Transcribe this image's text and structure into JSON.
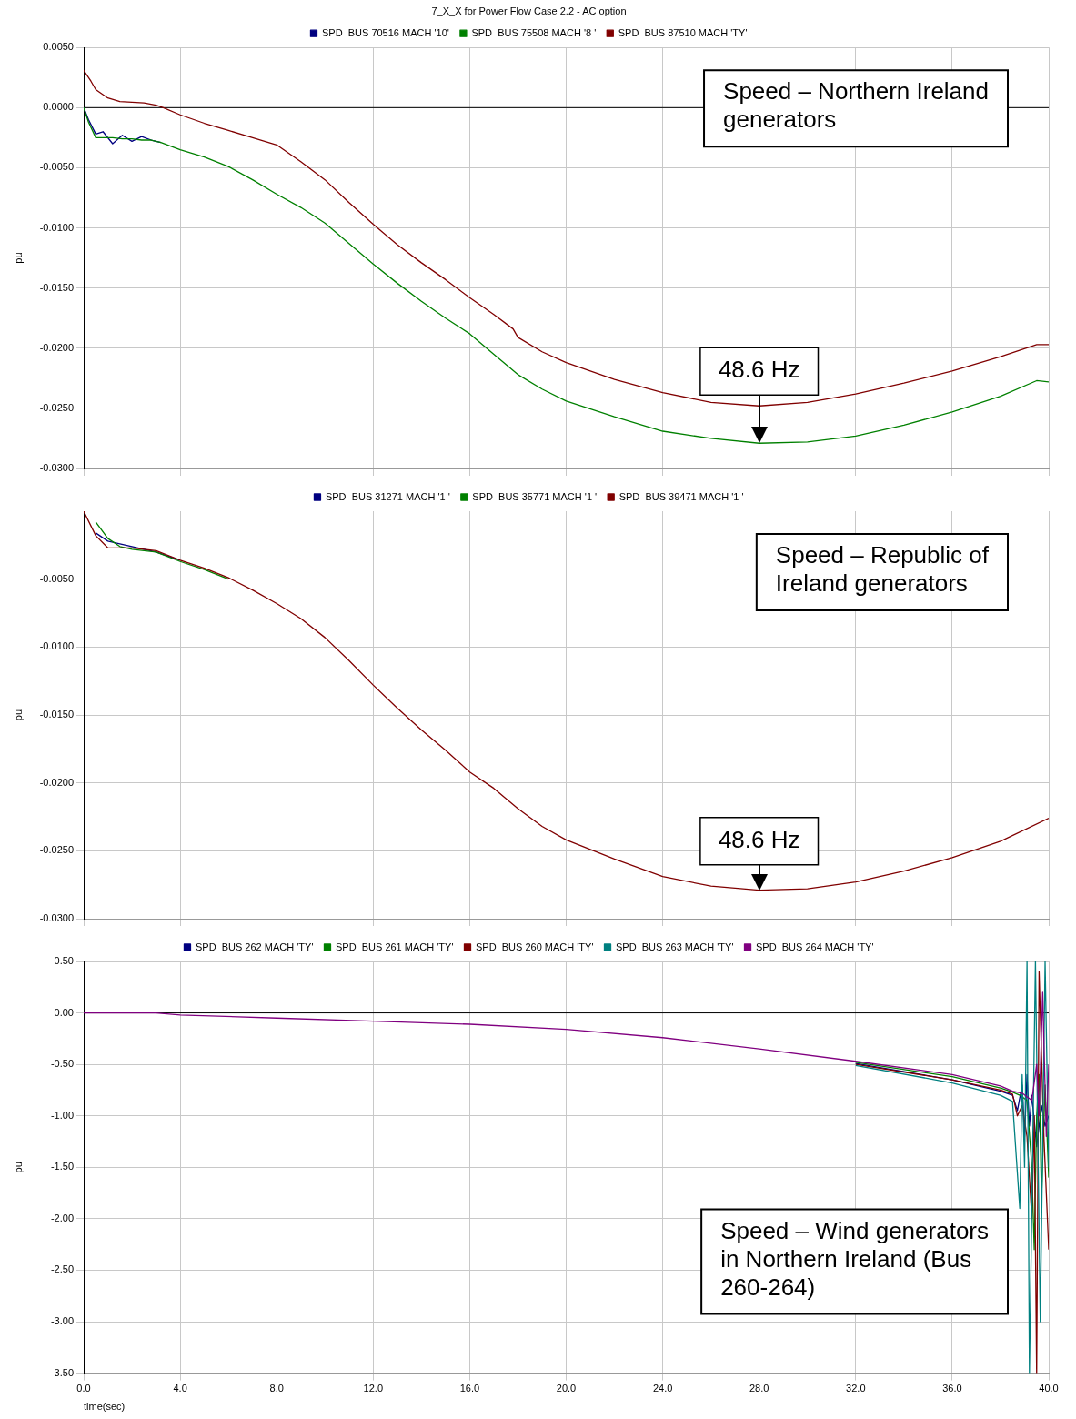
{
  "chart_data": [
    {
      "type": "line",
      "title": "7_X_X for Power Flow Case 2.2 - AC option",
      "ylabel": "pu",
      "xlim": [
        0,
        40
      ],
      "xticks": [
        0,
        4,
        8,
        12,
        16,
        20,
        24,
        28,
        32,
        36,
        40
      ],
      "ylim": [
        -0.03,
        0.005
      ],
      "yticks": [
        {
          "value": 0.005,
          "label": "0.0050"
        },
        {
          "value": 0,
          "label": "0.0000"
        },
        {
          "value": -0.005,
          "label": "-0.0050"
        },
        {
          "value": -0.01,
          "label": "-0.0100"
        },
        {
          "value": -0.015,
          "label": "-0.0150"
        },
        {
          "value": -0.02,
          "label": "-0.0200"
        },
        {
          "value": -0.025,
          "label": "-0.0250"
        },
        {
          "value": -0.03,
          "label": "-0.0300"
        }
      ],
      "tick_labels": "y",
      "grid": true,
      "legend": "top",
      "marker": "none",
      "ref_lines": [
        {
          "axis": "y",
          "value": 0,
          "color": "#000000"
        }
      ],
      "annotations": [
        "Speed – Northern Ireland generators",
        {
          "text": "48.6 Hz",
          "x": 28,
          "y": -0.0279
        }
      ],
      "series": [
        {
          "name": "SPD  BUS 70516 MACH '10'",
          "color": "#000080",
          "x": [
            0,
            0.2,
            0.5,
            0.8,
            1.2,
            1.6,
            2.0,
            2.4,
            2.8,
            3.2
          ],
          "values": [
            0,
            -0.001,
            -0.0022,
            -0.002,
            -0.003,
            -0.0023,
            -0.0028,
            -0.0024,
            -0.0027,
            -0.0029
          ]
        },
        {
          "name": "SPD  BUS 75508 MACH '8 '",
          "color": "#008000",
          "x": [
            0,
            0.2,
            0.5,
            0.8,
            1.2,
            1.6,
            2.0,
            2.4,
            2.8,
            3.2,
            4,
            5,
            6,
            7,
            8,
            9,
            10,
            11,
            12,
            13,
            14,
            15,
            16,
            17,
            18,
            19,
            20,
            22,
            24,
            26,
            28,
            30,
            32,
            34,
            36,
            38,
            39.5,
            40
          ],
          "values": [
            0,
            -0.0012,
            -0.0025,
            -0.0025,
            -0.0025,
            -0.0026,
            -0.0026,
            -0.0027,
            -0.0027,
            -0.0029,
            -0.0035,
            -0.0041,
            -0.0049,
            -0.006,
            -0.0072,
            -0.0083,
            -0.0096,
            -0.0113,
            -0.013,
            -0.0146,
            -0.0161,
            -0.0175,
            -0.0188,
            -0.0205,
            -0.0222,
            -0.0234,
            -0.0244,
            -0.0257,
            -0.0269,
            -0.0275,
            -0.0279,
            -0.0278,
            -0.0273,
            -0.0264,
            -0.0253,
            -0.024,
            -0.0227,
            -0.0228
          ]
        },
        {
          "name": "SPD  BUS 87510 MACH 'TY'",
          "color": "#800000",
          "x": [
            0,
            0.3,
            0.5,
            1,
            1.5,
            2.5,
            3,
            3.3,
            4,
            5,
            6,
            7,
            8,
            9,
            10,
            11,
            12,
            13,
            14,
            15,
            16,
            17,
            17.8,
            18,
            19,
            20,
            22,
            24,
            26,
            28,
            30,
            32,
            34,
            36,
            38,
            39.5,
            40
          ],
          "values": [
            0.0031,
            0.0022,
            0.0015,
            0.0008,
            0.0005,
            0.0004,
            0.0002,
            0,
            -0.0006,
            -0.0013,
            -0.0019,
            -0.0025,
            -0.0031,
            -0.0045,
            -0.006,
            -0.0079,
            -0.0097,
            -0.0114,
            -0.0129,
            -0.0143,
            -0.0158,
            -0.0172,
            -0.0184,
            -0.0191,
            -0.0203,
            -0.0212,
            -0.0226,
            -0.0237,
            -0.0245,
            -0.0248,
            -0.0245,
            -0.0238,
            -0.0229,
            -0.0219,
            -0.0207,
            -0.0197,
            -0.0197
          ]
        }
      ]
    },
    {
      "type": "line",
      "ylabel": "pu",
      "xlim": [
        0,
        40
      ],
      "xticks": [
        0,
        4,
        8,
        12,
        16,
        20,
        24,
        28,
        32,
        36,
        40
      ],
      "ylim": [
        -0.03,
        0
      ],
      "yticks": [
        {
          "value": -0.005,
          "label": "-0.0050"
        },
        {
          "value": -0.01,
          "label": "-0.0100"
        },
        {
          "value": -0.015,
          "label": "-0.0150"
        },
        {
          "value": -0.02,
          "label": "-0.0200"
        },
        {
          "value": -0.025,
          "label": "-0.0250"
        },
        {
          "value": -0.03,
          "label": "-0.0300"
        }
      ],
      "tick_labels": "y",
      "grid": true,
      "legend": "top",
      "marker": "none",
      "annotations": [
        "Speed – Republic of Ireland generators",
        {
          "text": "48.6 Hz",
          "x": 28,
          "y": -0.0279
        }
      ],
      "series": [
        {
          "name": "SPD  BUS 31271 MACH '1 '",
          "color": "#000080",
          "x": [
            0.5,
            1,
            1.5,
            2,
            3,
            4
          ],
          "values": [
            -0.0016,
            -0.0022,
            -0.0024,
            -0.0026,
            -0.003,
            -0.0036
          ]
        },
        {
          "name": "SPD  BUS 35771 MACH '1 '",
          "color": "#008000",
          "x": [
            0.5,
            1,
            1.5,
            2,
            3,
            4,
            5,
            6
          ],
          "values": [
            -0.0008,
            -0.002,
            -0.0026,
            -0.0028,
            -0.003,
            -0.0037,
            -0.0043,
            -0.005
          ]
        },
        {
          "name": "SPD  BUS 39471 MACH '1 '",
          "color": "#800000",
          "x": [
            0,
            0.5,
            1,
            1.5,
            2,
            3,
            4,
            5,
            6,
            7,
            8,
            9,
            10,
            11,
            12,
            13,
            14,
            15,
            16,
            17,
            18,
            19,
            20,
            22,
            24,
            26,
            28,
            30,
            32,
            34,
            36,
            38,
            40
          ],
          "values": [
            0,
            -0.0018,
            -0.0027,
            -0.0027,
            -0.0027,
            -0.0029,
            -0.0036,
            -0.0042,
            -0.0049,
            -0.0058,
            -0.0068,
            -0.0079,
            -0.0093,
            -0.011,
            -0.0128,
            -0.0145,
            -0.0161,
            -0.0176,
            -0.0192,
            -0.0204,
            -0.0219,
            -0.0232,
            -0.0242,
            -0.0256,
            -0.0269,
            -0.0276,
            -0.0279,
            -0.0278,
            -0.0273,
            -0.0265,
            -0.0255,
            -0.0243,
            -0.0226
          ]
        }
      ]
    },
    {
      "type": "line",
      "xlabel": "time(sec)",
      "ylabel": "pu",
      "xlim": [
        0,
        40
      ],
      "xticks": [
        {
          "value": 0,
          "label": "0.0"
        },
        {
          "value": 4,
          "label": "4.0"
        },
        {
          "value": 8,
          "label": "8.0"
        },
        {
          "value": 12,
          "label": "12.0"
        },
        {
          "value": 16,
          "label": "16.0"
        },
        {
          "value": 20,
          "label": "20.0"
        },
        {
          "value": 24,
          "label": "24.0"
        },
        {
          "value": 28,
          "label": "28.0"
        },
        {
          "value": 32,
          "label": "32.0"
        },
        {
          "value": 36,
          "label": "36.0"
        },
        {
          "value": 40,
          "label": "40.0"
        }
      ],
      "ylim": [
        -3.5,
        0.5
      ],
      "yticks": [
        {
          "value": 0.5,
          "label": "0.50"
        },
        {
          "value": 0,
          "label": "0.00"
        },
        {
          "value": -0.5,
          "label": "-0.50"
        },
        {
          "value": -1,
          "label": "-1.00"
        },
        {
          "value": -1.5,
          "label": "-1.50"
        },
        {
          "value": -2,
          "label": "-2.00"
        },
        {
          "value": -2.5,
          "label": "-2.50"
        },
        {
          "value": -3,
          "label": "-3.00"
        },
        {
          "value": -3.5,
          "label": "-3.50"
        }
      ],
      "grid": true,
      "legend": "top",
      "marker": "none",
      "ref_lines": [
        {
          "axis": "y",
          "value": 0,
          "color": "#000000"
        }
      ],
      "annotations": [
        "Speed – Wind generators in Northern Ireland (Bus 260-264)"
      ],
      "series": [
        {
          "name": "SPD  BUS 262 MACH 'TY'",
          "color": "#000080",
          "x": [
            32,
            36,
            38,
            38.5,
            38.7,
            38.9,
            39.0,
            39.1,
            39.2,
            39.3,
            39.5,
            39.7,
            39.85,
            40
          ],
          "values": [
            -0.49,
            -0.65,
            -0.76,
            -0.8,
            -0.95,
            -0.7,
            -1.2,
            -0.6,
            -1.1,
            -0.8,
            -1.3,
            -0.9,
            -1.1,
            -1.0
          ]
        },
        {
          "name": "SPD  BUS 261 MACH 'TY'",
          "color": "#008000",
          "x": [
            32,
            36,
            38,
            38.5,
            38.8,
            39.1,
            39.3,
            39.4,
            39.5,
            39.6,
            39.7,
            39.85,
            40
          ],
          "values": [
            -0.48,
            -0.62,
            -0.73,
            -0.77,
            -0.8,
            -0.85,
            -1.5,
            -2.3,
            -1.0,
            -0.6,
            -1.8,
            -0.7,
            -1.6
          ]
        },
        {
          "name": "SPD  BUS 260 MACH 'TY'",
          "color": "#800000",
          "x": [
            32,
            36,
            38,
            38.5,
            38.7,
            38.9,
            39.1,
            39.3,
            39.4,
            39.5,
            39.6,
            39.8,
            40
          ],
          "values": [
            -0.5,
            -0.65,
            -0.75,
            -0.79,
            -1.0,
            -0.9,
            -1.2,
            -2.0,
            -1.0,
            -3.5,
            0.4,
            -1.2,
            -2.3
          ]
        },
        {
          "name": "SPD  BUS 263 MACH 'TY'",
          "color": "#008080",
          "x": [
            32,
            36,
            38,
            38.5,
            38.8,
            38.9,
            39.0,
            39.1,
            39.2,
            39.45,
            39.65,
            39.85,
            40
          ],
          "values": [
            -0.51,
            -0.68,
            -0.8,
            -0.86,
            -1.9,
            -0.6,
            -1.5,
            0.5,
            -3.5,
            0.5,
            -3.0,
            0.5,
            -1.5
          ]
        },
        {
          "name": "SPD  BUS 264 MACH 'TY'",
          "color": "#800080",
          "x": [
            0,
            3,
            4,
            8,
            12,
            16,
            20,
            24,
            28,
            32,
            36,
            38,
            38.5,
            38.9,
            39.3,
            39.5,
            39.6,
            39.75,
            39.9,
            40
          ],
          "values": [
            0,
            0,
            -0.02,
            -0.05,
            -0.08,
            -0.11,
            -0.16,
            -0.24,
            -0.35,
            -0.47,
            -0.6,
            -0.71,
            -0.76,
            -0.78,
            -0.85,
            -0.5,
            -1.0,
            0.2,
            -1.2,
            -0.5
          ]
        }
      ]
    }
  ]
}
